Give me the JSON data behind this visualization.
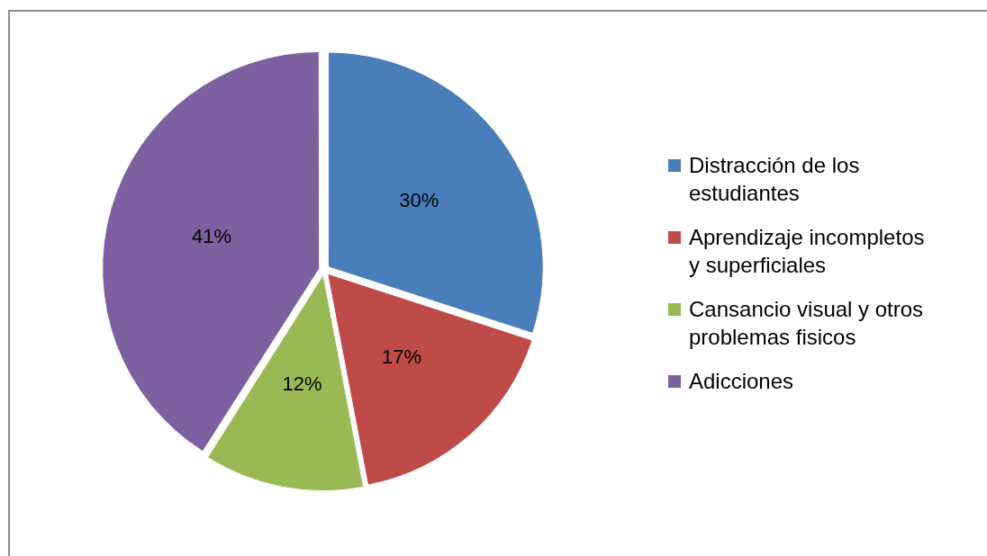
{
  "chart_data": {
    "type": "pie",
    "categories": [
      "Distracción de los estudiantes",
      "Aprendizaje incompletos y superficiales",
      "Cansancio visual y otros problemas fisicos",
      "Adicciones"
    ],
    "values": [
      30,
      17,
      12,
      41
    ],
    "colors": [
      "#4a7ebb",
      "#be4b48",
      "#98b954",
      "#7d60a0"
    ],
    "value_labels": [
      "30%",
      "17%",
      "12%",
      "41%"
    ],
    "legend": "right"
  }
}
